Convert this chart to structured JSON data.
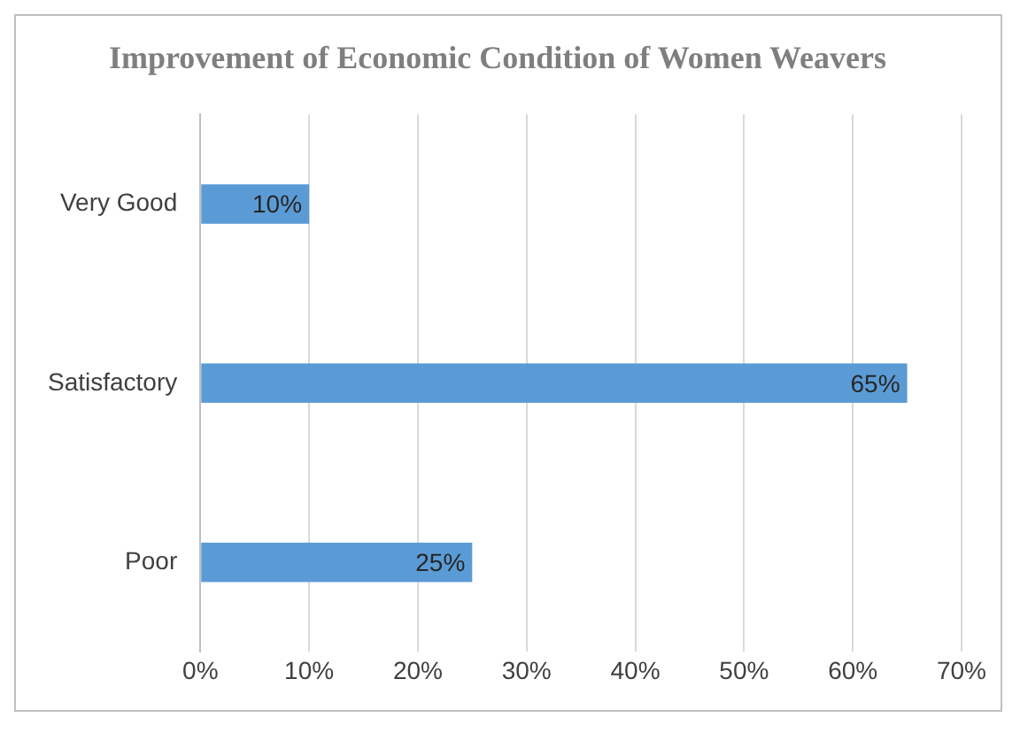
{
  "chart_data": {
    "type": "bar",
    "orientation": "horizontal",
    "title": "Improvement of Economic Condition of Women Weavers",
    "categories": [
      "Very Good",
      "Satisfactory",
      "Poor"
    ],
    "values": [
      10,
      65,
      25
    ],
    "value_labels": [
      "10%",
      "65%",
      "25%"
    ],
    "color": "#5b9bd5",
    "xlim": [
      0,
      70
    ],
    "xticks": [
      {
        "value": 0,
        "label": "0%"
      },
      {
        "value": 10,
        "label": "10%"
      },
      {
        "value": 20,
        "label": "20%"
      },
      {
        "value": 30,
        "label": "30%"
      },
      {
        "value": 40,
        "label": "40%"
      },
      {
        "value": 50,
        "label": "50%"
      },
      {
        "value": 60,
        "label": "60%"
      },
      {
        "value": 70,
        "label": "70%"
      }
    ],
    "grid": "x",
    "legend": false
  }
}
